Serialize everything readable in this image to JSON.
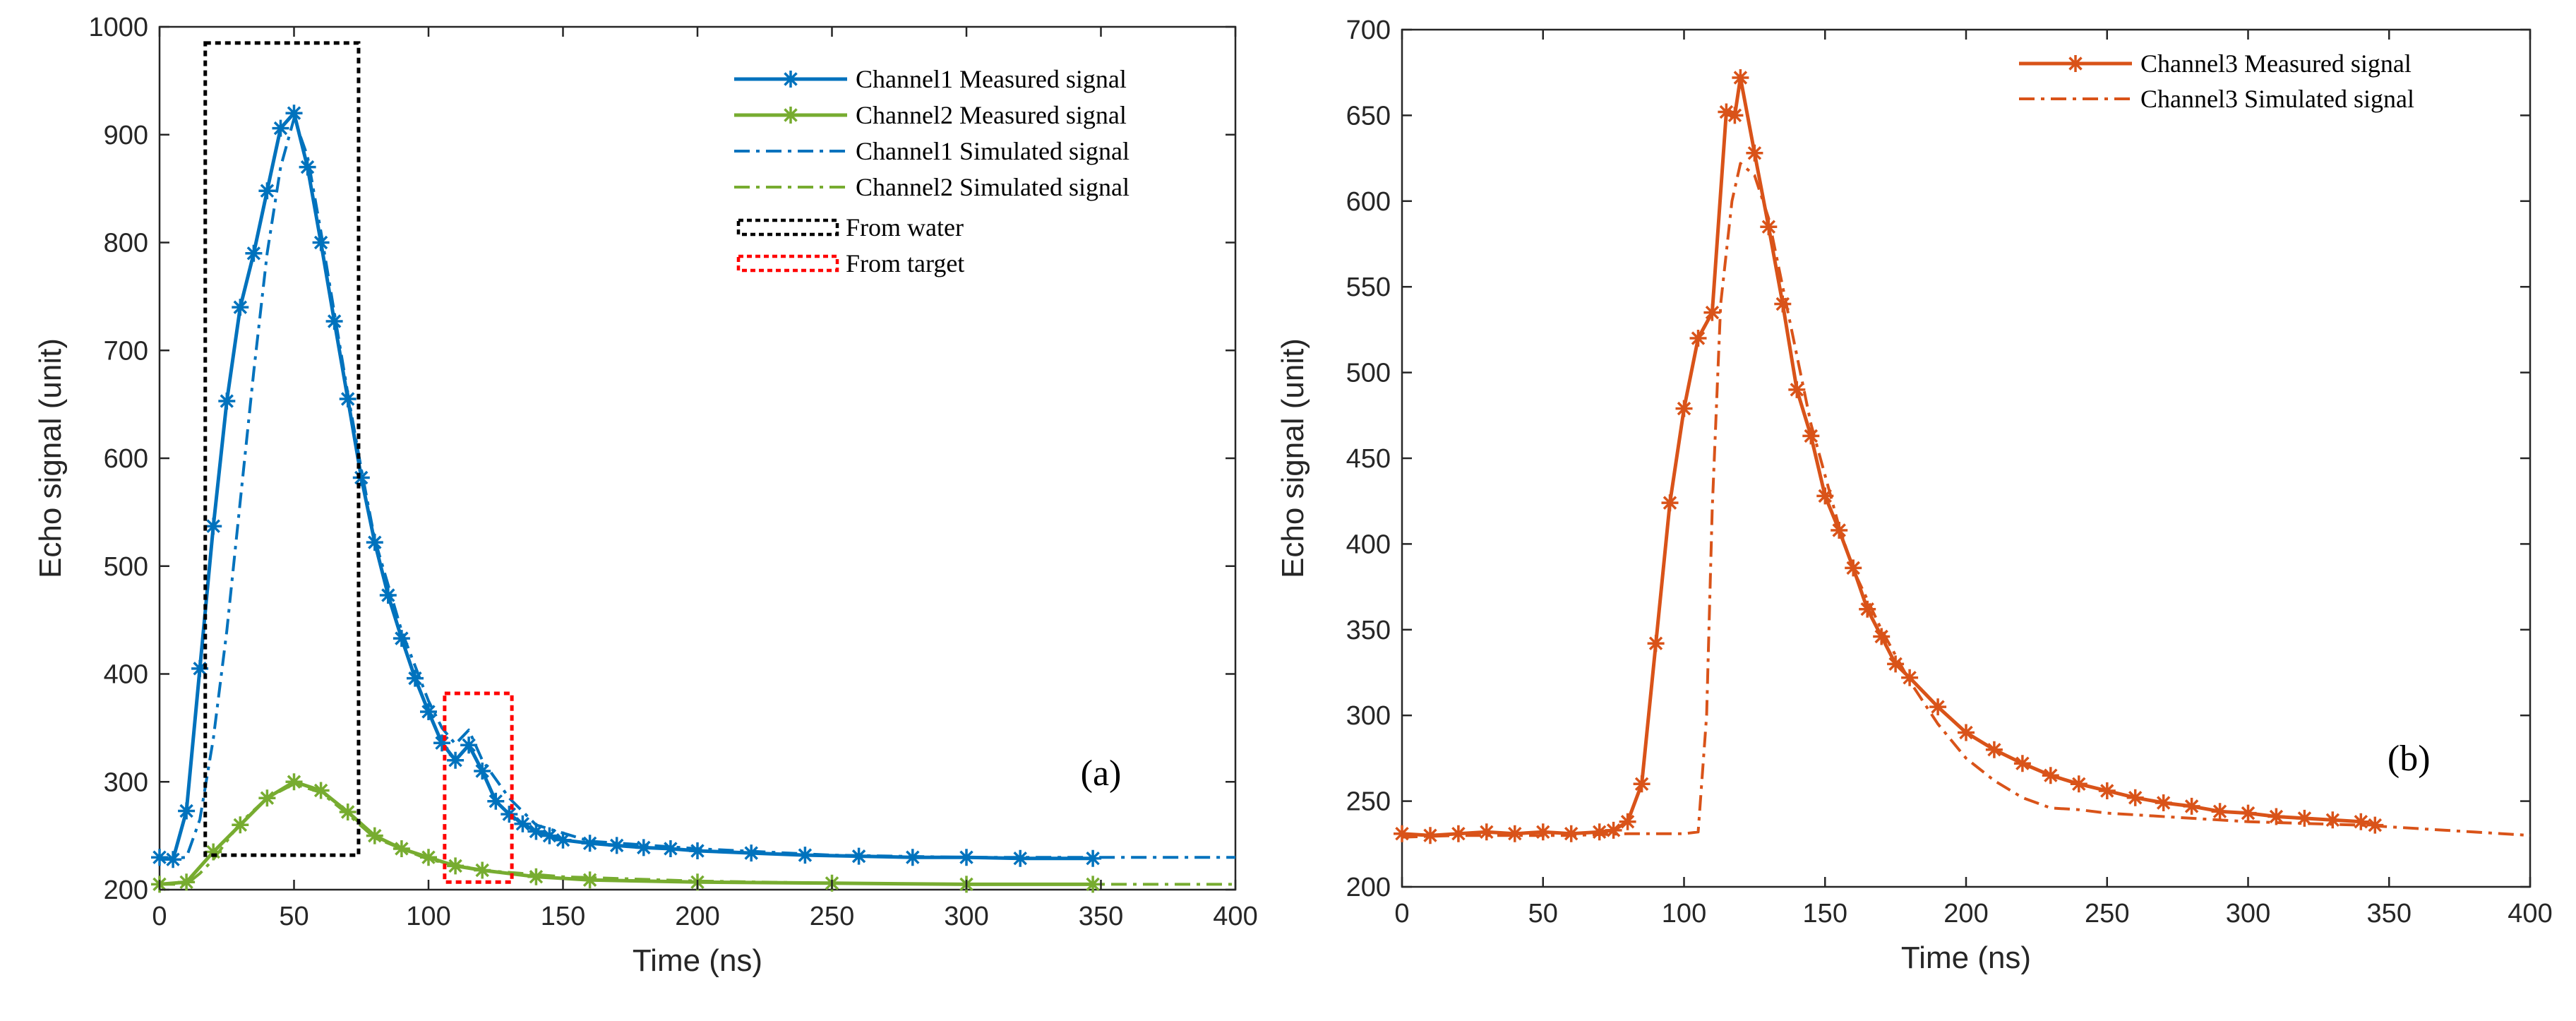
{
  "figure": {
    "colors": {
      "ch1": "#0072BD",
      "ch2": "#77AC30",
      "ch3": "#D95319",
      "water_box": "#000000",
      "target_box": "#FF0000"
    }
  },
  "chart_data": [
    {
      "type": "line",
      "panel_label": "(a)",
      "xlabel": "Time (ns)",
      "ylabel": "Echo signal (unit)",
      "xlim": [
        0,
        400
      ],
      "ylim": [
        200,
        1000
      ],
      "xticks": [
        0,
        50,
        100,
        150,
        200,
        250,
        300,
        350,
        400
      ],
      "yticks": [
        200,
        300,
        400,
        500,
        600,
        700,
        800,
        900,
        1000
      ],
      "legend_position": "top-right",
      "series": [
        {
          "name": "Channel1 Measured  signal",
          "color": "#0072BD",
          "style": "solid-star",
          "x": [
            0,
            5,
            10,
            15,
            20,
            25,
            30,
            35,
            40,
            45,
            50,
            55,
            60,
            65,
            70,
            75,
            80,
            85,
            90,
            95,
            100,
            105,
            110,
            115,
            120,
            125,
            130,
            135,
            140,
            145,
            150,
            160,
            170,
            180,
            190,
            200,
            220,
            240,
            260,
            280,
            300,
            320,
            347
          ],
          "y": [
            230,
            228,
            273,
            405,
            537,
            653,
            740,
            790,
            848,
            906,
            920,
            870,
            800,
            727,
            655,
            582,
            522,
            473,
            433,
            396,
            365,
            336,
            320,
            334,
            310,
            282,
            270,
            261,
            254,
            250,
            246,
            243,
            241,
            239,
            238,
            236,
            234,
            232,
            231,
            230,
            230,
            229,
            229
          ]
        },
        {
          "name": "Channel2 Measured  signal",
          "color": "#77AC30",
          "style": "solid-star",
          "x": [
            0,
            10,
            20,
            30,
            40,
            50,
            60,
            70,
            80,
            90,
            100,
            110,
            120,
            140,
            160,
            200,
            250,
            300,
            347
          ],
          "y": [
            205,
            207,
            235,
            260,
            285,
            300,
            292,
            272,
            250,
            238,
            230,
            222,
            218,
            212,
            209,
            207,
            206,
            205,
            205
          ]
        },
        {
          "name": "Channel1 Simulated  signal",
          "color": "#0072BD",
          "style": "dashdot",
          "x": [
            0,
            10,
            15,
            20,
            25,
            30,
            35,
            40,
            45,
            50,
            55,
            60,
            65,
            70,
            75,
            80,
            90,
            100,
            105,
            110,
            115,
            120,
            130,
            140,
            160,
            200,
            250,
            300,
            350,
            400
          ],
          "y": [
            228,
            230,
            265,
            340,
            440,
            560,
            680,
            790,
            870,
            915,
            880,
            810,
            735,
            660,
            590,
            525,
            440,
            375,
            350,
            335,
            348,
            320,
            285,
            260,
            245,
            238,
            232,
            230,
            230,
            230
          ]
        },
        {
          "name": "Channel2 Simulated  signal",
          "color": "#77AC30",
          "style": "dashdot",
          "x": [
            0,
            10,
            15,
            20,
            25,
            30,
            40,
            50,
            60,
            70,
            80,
            100,
            120,
            150,
            200,
            250,
            300,
            350,
            400
          ],
          "y": [
            205,
            205,
            215,
            228,
            245,
            262,
            285,
            298,
            290,
            270,
            248,
            228,
            218,
            212,
            208,
            206,
            205,
            205,
            205
          ]
        }
      ],
      "annotations": [
        {
          "label": "From water",
          "style": "dotted-box",
          "color": "#000000",
          "x_range": [
            17,
            74
          ],
          "y_range": [
            232,
            985
          ]
        },
        {
          "label": "From target",
          "style": "dotted-box",
          "color": "#FF0000",
          "x_range": [
            106,
            131
          ],
          "y_range": [
            207,
            382
          ]
        }
      ]
    },
    {
      "type": "line",
      "panel_label": "(b)",
      "xlabel": "Time (ns)",
      "ylabel": "Echo signal (unit)",
      "xlim": [
        0,
        400
      ],
      "ylim": [
        200,
        700
      ],
      "xticks": [
        0,
        50,
        100,
        150,
        200,
        250,
        300,
        350,
        400
      ],
      "yticks": [
        200,
        250,
        300,
        350,
        400,
        450,
        500,
        550,
        600,
        650,
        700
      ],
      "legend_position": "top-right",
      "series": [
        {
          "name": "Channel3 Measured  signal",
          "color": "#D95319",
          "style": "solid-star",
          "x": [
            0,
            10,
            20,
            30,
            40,
            50,
            60,
            70,
            75,
            80,
            85,
            90,
            95,
            100,
            105,
            110,
            115,
            118,
            120,
            125,
            130,
            135,
            140,
            145,
            150,
            155,
            160,
            165,
            170,
            175,
            180,
            190,
            200,
            210,
            220,
            230,
            240,
            250,
            260,
            270,
            280,
            290,
            300,
            310,
            320,
            330,
            340,
            345
          ],
          "y": [
            231,
            230,
            231,
            232,
            231,
            232,
            231,
            232,
            233,
            238,
            260,
            342,
            424,
            479,
            520,
            535,
            652,
            650,
            672,
            628,
            585,
            540,
            490,
            463,
            428,
            408,
            386,
            362,
            346,
            330,
            322,
            305,
            290,
            280,
            272,
            265,
            260,
            256,
            252,
            249,
            247,
            244,
            243,
            241,
            240,
            239,
            238,
            236
          ]
        },
        {
          "name": "Channel3 Simulated  signal",
          "color": "#D95319",
          "style": "dashdot",
          "x": [
            0,
            20,
            40,
            60,
            80,
            100,
            105,
            108,
            110,
            113,
            117,
            120,
            125,
            130,
            135,
            140,
            145,
            150,
            155,
            160,
            170,
            180,
            190,
            200,
            210,
            220,
            230,
            240,
            250,
            260,
            280,
            300,
            320,
            340,
            350,
            360,
            370,
            380,
            390,
            400
          ],
          "y": [
            229,
            230,
            230,
            230,
            231,
            231,
            232,
            300,
            420,
            540,
            600,
            622,
            615,
            590,
            550,
            510,
            470,
            440,
            410,
            385,
            350,
            320,
            295,
            275,
            262,
            252,
            246,
            245,
            243,
            242,
            240,
            238,
            237,
            236,
            235,
            234,
            233,
            232,
            231,
            230
          ]
        }
      ]
    }
  ]
}
